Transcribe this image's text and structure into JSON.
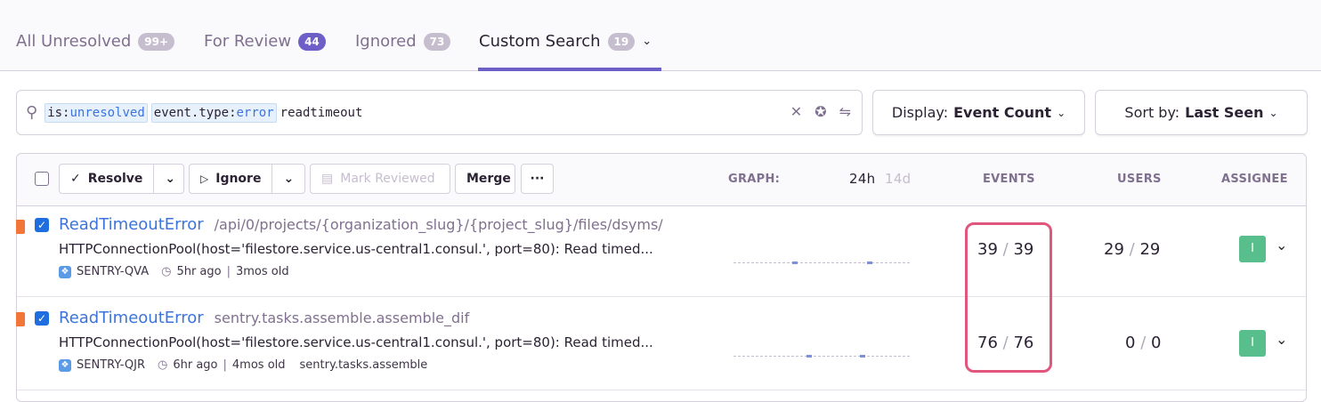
{
  "tabs": [
    {
      "label": "All Unresolved",
      "count": "99+"
    },
    {
      "label": "For Review",
      "count": "44"
    },
    {
      "label": "Ignored",
      "count": "73"
    },
    {
      "label": "Custom Search",
      "count": "19",
      "active": true
    }
  ],
  "search": {
    "tokens": [
      {
        "key": "is:",
        "value": "unresolved"
      },
      {
        "key": "event.type:",
        "value": "error"
      }
    ],
    "free_text": "readtimeout",
    "icons": [
      "search-icon",
      "clear-icon",
      "pin-icon",
      "settings-icon"
    ]
  },
  "display": {
    "label": "Display:",
    "value": "Event Count"
  },
  "sort": {
    "label": "Sort by:",
    "value": "Last Seen"
  },
  "toolbar": {
    "resolve": "Resolve",
    "ignore": "Ignore",
    "mark_reviewed": "Mark Reviewed",
    "merge": "Merge",
    "more": "···"
  },
  "columns": {
    "graph": "GRAPH:",
    "period_active": "24h",
    "period_inactive": "14d",
    "events": "EVENTS",
    "users": "USERS",
    "assignee": "ASSIGNEE"
  },
  "colors": {
    "accent": "#6c5fc7",
    "link": "#3d74db",
    "level_error": "#f2753a",
    "highlight": "#e1567c",
    "assignee": "#57be8c"
  },
  "issues": [
    {
      "title": "ReadTimeoutError",
      "culprit": "/api/0/projects/{organization_slug}/{project_slug}/files/dsyms/",
      "message": "HTTPConnectionPool(host='filestore.service.us-central1.consul.', port=80): Read timed...",
      "short_id": "SENTRY-QVA",
      "last_seen": "5hr ago",
      "age": "3mos old",
      "extra": "",
      "events": "39",
      "events_total": "39",
      "users": "29",
      "users_total": "29",
      "assignee": "I",
      "checked": true
    },
    {
      "title": "ReadTimeoutError",
      "culprit": "sentry.tasks.assemble.assemble_dif",
      "message": "HTTPConnectionPool(host='filestore.service.us-central1.consul.', port=80): Read timed...",
      "short_id": "SENTRY-QJR",
      "last_seen": "6hr ago",
      "age": "4mos old",
      "extra": "sentry.tasks.assemble",
      "events": "76",
      "events_total": "76",
      "users": "0",
      "users_total": "0",
      "assignee": "I",
      "checked": true
    }
  ]
}
